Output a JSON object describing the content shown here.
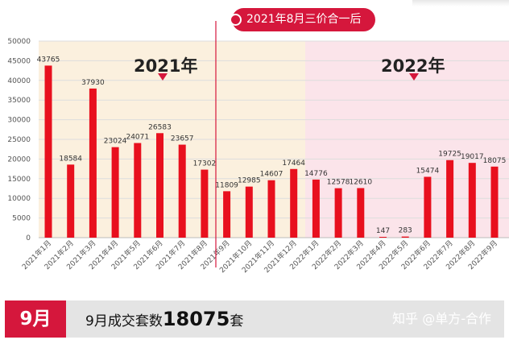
{
  "colors": {
    "bar": "#e8101e",
    "bg_2021": "#fbf0de",
    "bg_2022": "#fbe4ea",
    "accent": "#d5173c"
  },
  "callout": {
    "text": "2021年8月三价合一后"
  },
  "periods": {
    "label_2021": "2021年",
    "label_2022": "2022年"
  },
  "bottom_bar": {
    "month": "9月",
    "text_prefix": "9月成交套数",
    "value": "18075",
    "text_suffix": "套",
    "watermark": "知乎 @单方-合作"
  },
  "chart_data": {
    "type": "bar",
    "categories": [
      "2021年1月",
      "2021年2月",
      "2021年3月",
      "2021年4月",
      "2021年5月",
      "2021年6月",
      "2021年7月",
      "2021年8月",
      "2021年9月",
      "2021年10月",
      "2021年11月",
      "2021年12月",
      "2022年1月",
      "2022年2月",
      "2022年3月",
      "2022年4月",
      "2022年5月",
      "2022年6月",
      "2022年7月",
      "2022年8月",
      "2022年9月"
    ],
    "values": [
      43765,
      18584,
      37930,
      23024,
      24071,
      26583,
      23657,
      17302,
      11809,
      12985,
      14607,
      17464,
      14776,
      12578,
      12610,
      147,
      283,
      15474,
      19725,
      19017,
      18075
    ],
    "ylim": [
      0,
      50000
    ],
    "yticks": [
      "0",
      "5000",
      "10000",
      "15000",
      "20000",
      "25000",
      "30000",
      "35000",
      "40000",
      "45000",
      "50000"
    ],
    "grid": true,
    "legend": "none"
  }
}
